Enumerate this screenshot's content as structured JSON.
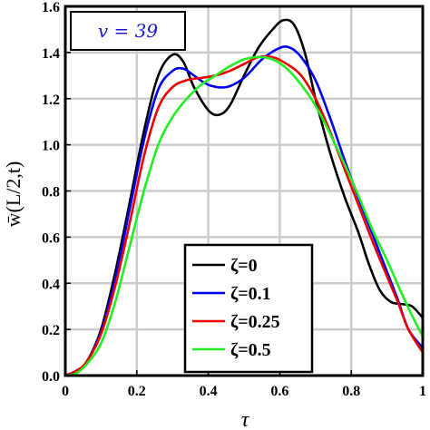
{
  "chart_data": {
    "type": "line",
    "title": "",
    "xlabel": "τ",
    "ylabel": "w̄(L/2,t)",
    "xlim": [
      0,
      1
    ],
    "ylim": [
      0,
      1.6
    ],
    "grid": true,
    "x_ticks": [
      "0",
      "0.2",
      "0.4",
      "0.6",
      "0.8",
      "1"
    ],
    "y_ticks": [
      "0.0",
      "0.2",
      "0.4",
      "0.6",
      "0.8",
      "1.0",
      "1.2",
      "1.4",
      "1.6"
    ],
    "annotation": "v = 39",
    "legend_position": "bottom-center",
    "series": [
      {
        "name": "ζ=0",
        "color": "#000000",
        "x": [
          0,
          0.03,
          0.06,
          0.1,
          0.14,
          0.18,
          0.22,
          0.26,
          0.3,
          0.33,
          0.36,
          0.4,
          0.43,
          0.46,
          0.5,
          0.54,
          0.58,
          0.61,
          0.64,
          0.67,
          0.7,
          0.74,
          0.78,
          0.82,
          0.85,
          0.88,
          0.91,
          0.94,
          0.97,
          1.0
        ],
        "y": [
          0,
          0.02,
          0.06,
          0.2,
          0.45,
          0.75,
          1.06,
          1.3,
          1.39,
          1.36,
          1.25,
          1.15,
          1.13,
          1.17,
          1.3,
          1.42,
          1.5,
          1.54,
          1.52,
          1.4,
          1.2,
          0.97,
          0.78,
          0.62,
          0.48,
          0.37,
          0.32,
          0.31,
          0.3,
          0.25
        ]
      },
      {
        "name": "ζ=0.1",
        "color": "#0000ee",
        "x": [
          0,
          0.03,
          0.06,
          0.1,
          0.14,
          0.18,
          0.22,
          0.26,
          0.3,
          0.33,
          0.36,
          0.4,
          0.45,
          0.5,
          0.55,
          0.6,
          0.63,
          0.66,
          0.7,
          0.74,
          0.78,
          0.82,
          0.86,
          0.9,
          0.93,
          0.96,
          1.0
        ],
        "y": [
          0,
          0.02,
          0.06,
          0.19,
          0.42,
          0.72,
          1.02,
          1.24,
          1.32,
          1.33,
          1.3,
          1.26,
          1.25,
          1.29,
          1.37,
          1.42,
          1.42,
          1.38,
          1.28,
          1.12,
          0.94,
          0.77,
          0.61,
          0.45,
          0.33,
          0.2,
          0.12
        ]
      },
      {
        "name": "ζ=0.25",
        "color": "#ee0000",
        "x": [
          0,
          0.03,
          0.06,
          0.1,
          0.14,
          0.18,
          0.22,
          0.26,
          0.3,
          0.34,
          0.38,
          0.42,
          0.46,
          0.5,
          0.54,
          0.58,
          0.62,
          0.66,
          0.7,
          0.74,
          0.78,
          0.82,
          0.86,
          0.9,
          0.93,
          0.96,
          1.0
        ],
        "y": [
          0,
          0.02,
          0.06,
          0.18,
          0.39,
          0.66,
          0.95,
          1.16,
          1.25,
          1.28,
          1.29,
          1.3,
          1.32,
          1.35,
          1.38,
          1.38,
          1.35,
          1.3,
          1.2,
          1.06,
          0.9,
          0.74,
          0.58,
          0.43,
          0.32,
          0.2,
          0.1
        ]
      },
      {
        "name": "ζ=0.5",
        "color": "#22ee22",
        "x": [
          0,
          0.03,
          0.06,
          0.1,
          0.14,
          0.18,
          0.22,
          0.26,
          0.3,
          0.34,
          0.38,
          0.42,
          0.46,
          0.5,
          0.54,
          0.58,
          0.62,
          0.66,
          0.7,
          0.74,
          0.78,
          0.82,
          0.86,
          0.9,
          0.94,
          0.97,
          1.0
        ],
        "y": [
          0,
          0.01,
          0.05,
          0.14,
          0.32,
          0.56,
          0.8,
          1.0,
          1.12,
          1.2,
          1.26,
          1.3,
          1.34,
          1.37,
          1.38,
          1.37,
          1.33,
          1.26,
          1.17,
          1.05,
          0.92,
          0.78,
          0.63,
          0.5,
          0.36,
          0.26,
          0.17
        ]
      }
    ]
  }
}
